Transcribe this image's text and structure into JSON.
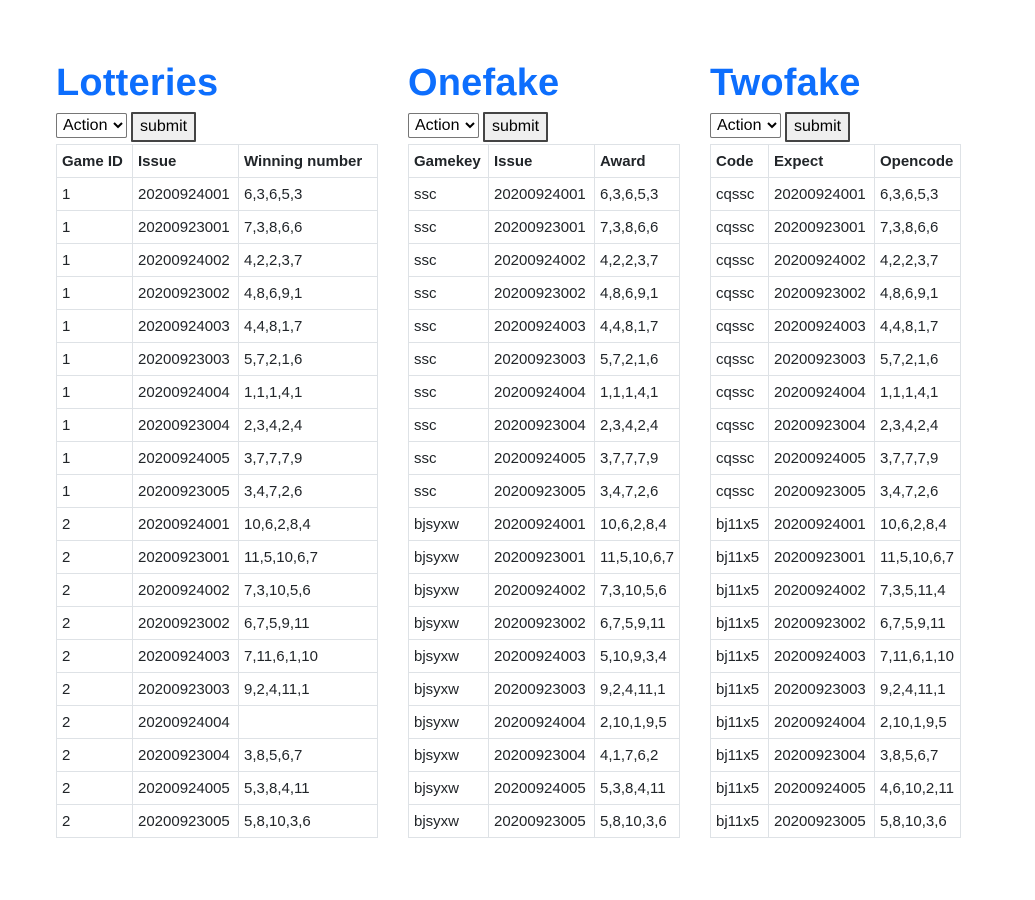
{
  "action_label": "Action",
  "submit_label": "submit",
  "panels": [
    {
      "title": "Lotteries",
      "headers": [
        "Game ID",
        "Issue",
        "Winning number"
      ],
      "rows": [
        [
          "1",
          "20200924001",
          "6,3,6,5,3"
        ],
        [
          "1",
          "20200923001",
          "7,3,8,6,6"
        ],
        [
          "1",
          "20200924002",
          "4,2,2,3,7"
        ],
        [
          "1",
          "20200923002",
          "4,8,6,9,1"
        ],
        [
          "1",
          "20200924003",
          "4,4,8,1,7"
        ],
        [
          "1",
          "20200923003",
          "5,7,2,1,6"
        ],
        [
          "1",
          "20200924004",
          "1,1,1,4,1"
        ],
        [
          "1",
          "20200923004",
          "2,3,4,2,4"
        ],
        [
          "1",
          "20200924005",
          "3,7,7,7,9"
        ],
        [
          "1",
          "20200923005",
          "3,4,7,2,6"
        ],
        [
          "2",
          "20200924001",
          "10,6,2,8,4"
        ],
        [
          "2",
          "20200923001",
          "11,5,10,6,7"
        ],
        [
          "2",
          "20200924002",
          "7,3,10,5,6"
        ],
        [
          "2",
          "20200923002",
          "6,7,5,9,11"
        ],
        [
          "2",
          "20200924003",
          "7,11,6,1,10"
        ],
        [
          "2",
          "20200923003",
          "9,2,4,11,1"
        ],
        [
          "2",
          "20200924004",
          ""
        ],
        [
          "2",
          "20200923004",
          "3,8,5,6,7"
        ],
        [
          "2",
          "20200924005",
          "5,3,8,4,11"
        ],
        [
          "2",
          "20200923005",
          "5,8,10,3,6"
        ]
      ]
    },
    {
      "title": "Onefake",
      "headers": [
        "Gamekey",
        "Issue",
        "Award"
      ],
      "rows": [
        [
          "ssc",
          "20200924001",
          "6,3,6,5,3"
        ],
        [
          "ssc",
          "20200923001",
          "7,3,8,6,6"
        ],
        [
          "ssc",
          "20200924002",
          "4,2,2,3,7"
        ],
        [
          "ssc",
          "20200923002",
          "4,8,6,9,1"
        ],
        [
          "ssc",
          "20200924003",
          "4,4,8,1,7"
        ],
        [
          "ssc",
          "20200923003",
          "5,7,2,1,6"
        ],
        [
          "ssc",
          "20200924004",
          "1,1,1,4,1"
        ],
        [
          "ssc",
          "20200923004",
          "2,3,4,2,4"
        ],
        [
          "ssc",
          "20200924005",
          "3,7,7,7,9"
        ],
        [
          "ssc",
          "20200923005",
          "3,4,7,2,6"
        ],
        [
          "bjsyxw",
          "20200924001",
          "10,6,2,8,4"
        ],
        [
          "bjsyxw",
          "20200923001",
          "11,5,10,6,7"
        ],
        [
          "bjsyxw",
          "20200924002",
          "7,3,10,5,6"
        ],
        [
          "bjsyxw",
          "20200923002",
          "6,7,5,9,11"
        ],
        [
          "bjsyxw",
          "20200924003",
          "5,10,9,3,4"
        ],
        [
          "bjsyxw",
          "20200923003",
          "9,2,4,11,1"
        ],
        [
          "bjsyxw",
          "20200924004",
          "2,10,1,9,5"
        ],
        [
          "bjsyxw",
          "20200923004",
          "4,1,7,6,2"
        ],
        [
          "bjsyxw",
          "20200924005",
          "5,3,8,4,11"
        ],
        [
          "bjsyxw",
          "20200923005",
          "5,8,10,3,6"
        ]
      ]
    },
    {
      "title": "Twofake",
      "headers": [
        "Code",
        "Expect",
        "Opencode"
      ],
      "rows": [
        [
          "cqssc",
          "20200924001",
          "6,3,6,5,3"
        ],
        [
          "cqssc",
          "20200923001",
          "7,3,8,6,6"
        ],
        [
          "cqssc",
          "20200924002",
          "4,2,2,3,7"
        ],
        [
          "cqssc",
          "20200923002",
          "4,8,6,9,1"
        ],
        [
          "cqssc",
          "20200924003",
          "4,4,8,1,7"
        ],
        [
          "cqssc",
          "20200923003",
          "5,7,2,1,6"
        ],
        [
          "cqssc",
          "20200924004",
          "1,1,1,4,1"
        ],
        [
          "cqssc",
          "20200923004",
          "2,3,4,2,4"
        ],
        [
          "cqssc",
          "20200924005",
          "3,7,7,7,9"
        ],
        [
          "cqssc",
          "20200923005",
          "3,4,7,2,6"
        ],
        [
          "bj11x5",
          "20200924001",
          "10,6,2,8,4"
        ],
        [
          "bj11x5",
          "20200923001",
          "11,5,10,6,7"
        ],
        [
          "bj11x5",
          "20200924002",
          "7,3,5,11,4"
        ],
        [
          "bj11x5",
          "20200923002",
          "6,7,5,9,11"
        ],
        [
          "bj11x5",
          "20200924003",
          "7,11,6,1,10"
        ],
        [
          "bj11x5",
          "20200923003",
          "9,2,4,11,1"
        ],
        [
          "bj11x5",
          "20200924004",
          "2,10,1,9,5"
        ],
        [
          "bj11x5",
          "20200923004",
          "3,8,5,6,7"
        ],
        [
          "bj11x5",
          "20200924005",
          "4,6,10,2,11"
        ],
        [
          "bj11x5",
          "20200923005",
          "5,8,10,3,6"
        ]
      ]
    }
  ]
}
